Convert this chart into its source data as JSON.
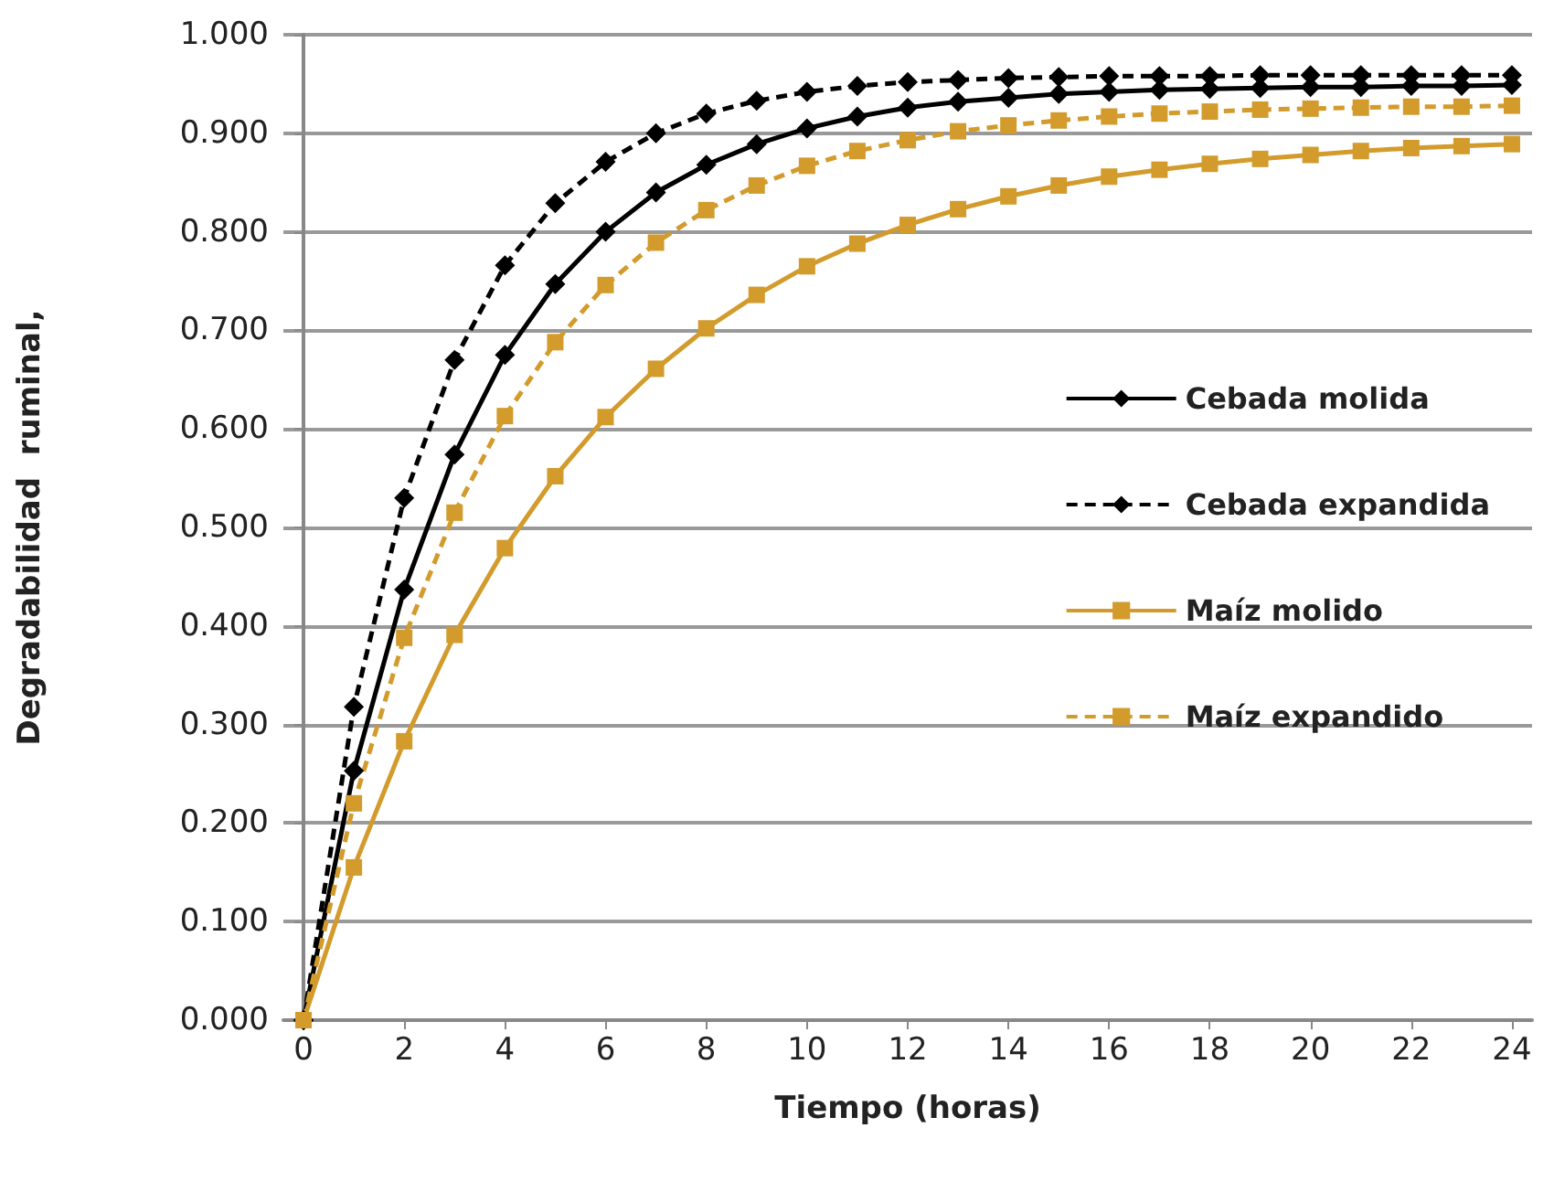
{
  "chart_data": {
    "type": "line",
    "xlabel": "Tiempo (horas)",
    "ylabel": "Degradabilidad  ruminal,",
    "x": [
      0,
      1,
      2,
      3,
      4,
      5,
      6,
      7,
      8,
      9,
      10,
      11,
      12,
      13,
      14,
      15,
      16,
      17,
      18,
      19,
      20,
      21,
      22,
      23,
      24
    ],
    "series": [
      {
        "name": "Cebada molida",
        "color": "#000000",
        "marker": "diamond",
        "line_style": "solid",
        "values": [
          0,
          0.253,
          0.437,
          0.574,
          0.675,
          0.747,
          0.8,
          0.84,
          0.868,
          0.889,
          0.905,
          0.917,
          0.926,
          0.932,
          0.936,
          0.94,
          0.942,
          0.944,
          0.945,
          0.946,
          0.947,
          0.947,
          0.948,
          0.948,
          0.949
        ]
      },
      {
        "name": "Cebada expandida",
        "color": "#000000",
        "marker": "diamond",
        "line_style": "dashed",
        "values": [
          0,
          0.318,
          0.53,
          0.67,
          0.766,
          0.829,
          0.871,
          0.9,
          0.92,
          0.933,
          0.942,
          0.948,
          0.952,
          0.954,
          0.956,
          0.957,
          0.958,
          0.958,
          0.958,
          0.959,
          0.959,
          0.959,
          0.959,
          0.959,
          0.959
        ]
      },
      {
        "name": "Maíz molido",
        "color": "#d29b2c",
        "marker": "square",
        "line_style": "solid",
        "values": [
          0,
          0.155,
          0.283,
          0.391,
          0.479,
          0.552,
          0.612,
          0.661,
          0.702,
          0.736,
          0.765,
          0.788,
          0.807,
          0.823,
          0.836,
          0.847,
          0.856,
          0.863,
          0.869,
          0.874,
          0.878,
          0.882,
          0.885,
          0.887,
          0.889
        ]
      },
      {
        "name": "Maíz expandido",
        "color": "#d29b2c",
        "marker": "square",
        "line_style": "dashed",
        "values": [
          0,
          0.22,
          0.388,
          0.515,
          0.613,
          0.688,
          0.746,
          0.789,
          0.822,
          0.847,
          0.867,
          0.882,
          0.893,
          0.902,
          0.908,
          0.913,
          0.917,
          0.92,
          0.922,
          0.924,
          0.925,
          0.926,
          0.927,
          0.927,
          0.928
        ]
      }
    ],
    "xlim": [
      -0.4,
      24.4
    ],
    "xticks": [
      0,
      2,
      4,
      6,
      8,
      10,
      12,
      14,
      16,
      18,
      20,
      22,
      24
    ],
    "ylim": [
      0,
      1
    ],
    "yticks": [
      {
        "value": 0,
        "label": "0.000"
      },
      {
        "value": 0.1,
        "label": "0.100"
      },
      {
        "value": 0.2,
        "label": "0.200"
      },
      {
        "value": 0.3,
        "label": "0.300"
      },
      {
        "value": 0.4,
        "label": "0.400"
      },
      {
        "value": 0.5,
        "label": "0.500"
      },
      {
        "value": 0.6,
        "label": "0.600"
      },
      {
        "value": 0.7,
        "label": "0.700"
      },
      {
        "value": 0.8,
        "label": "0.800"
      },
      {
        "value": 0.9,
        "label": "0.900"
      },
      {
        "value": 1,
        "label": "1.000"
      }
    ],
    "grid": "y",
    "legend": "right"
  }
}
